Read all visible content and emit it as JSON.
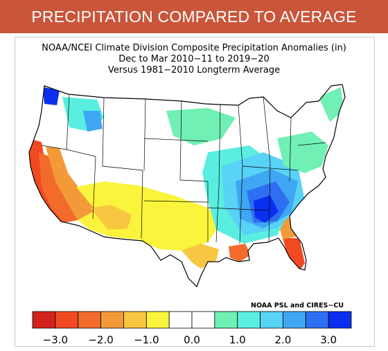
{
  "banner": {
    "title": "PRECIPITATION COMPARED TO AVERAGE"
  },
  "map": {
    "title_lines": [
      "NOAA/NCEI Climate Division Composite Precipitation Anomalies (in)",
      "Dec to Mar 2010−11 to 2019−20",
      "Versus 1981−2010 Longterm Average"
    ],
    "credit": "NOAA PSL and CIRES−CU",
    "units": "in"
  },
  "legend": {
    "bins": [
      {
        "color": "#d4231b"
      },
      {
        "color": "#f14a22"
      },
      {
        "color": "#f26b2b"
      },
      {
        "color": "#f39a38"
      },
      {
        "color": "#f8c640"
      },
      {
        "color": "#fbf43c"
      },
      {
        "color": "#ffffff"
      },
      {
        "color": "#ffffff"
      },
      {
        "color": "#70f0b4"
      },
      {
        "color": "#59eee0"
      },
      {
        "color": "#58d2f5"
      },
      {
        "color": "#3fa6f4"
      },
      {
        "color": "#2e6ff1"
      },
      {
        "color": "#0b2fef"
      }
    ],
    "ticks": [
      {
        "label": "−3.0",
        "value": -3.0
      },
      {
        "label": "−2.0",
        "value": -2.0
      },
      {
        "label": "−1.0",
        "value": -1.0
      },
      {
        "label": "0.0",
        "value": 0.0
      },
      {
        "label": "1.0",
        "value": 1.0
      },
      {
        "label": "2.0",
        "value": 2.0
      },
      {
        "label": "3.0",
        "value": 3.0
      }
    ]
  }
}
